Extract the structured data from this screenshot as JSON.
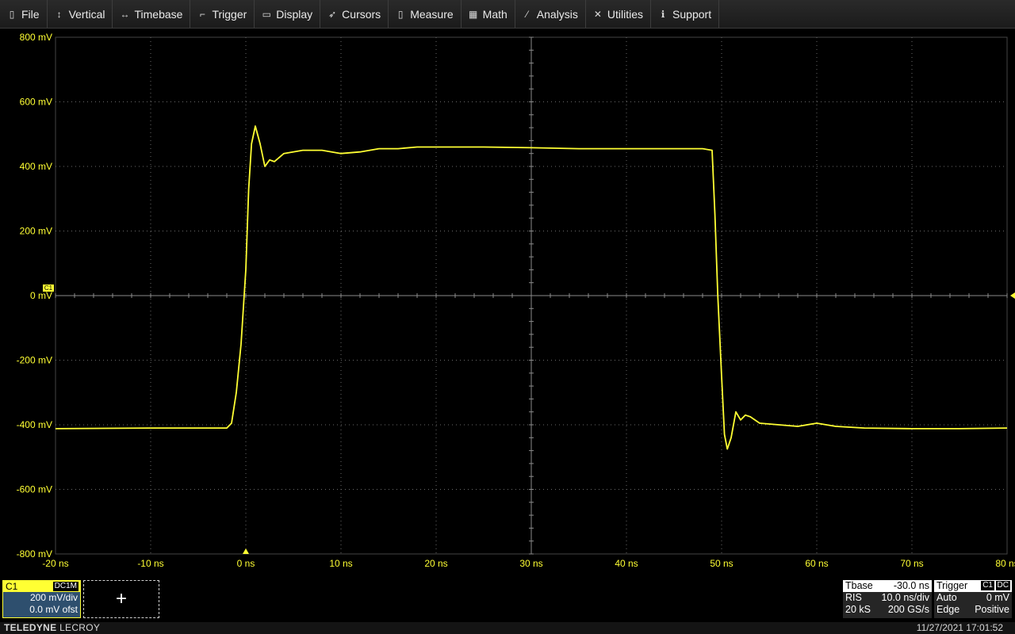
{
  "menu": [
    {
      "label": "File",
      "icon": "file-icon",
      "glyph": "▯"
    },
    {
      "label": "Vertical",
      "icon": "vertical-arrows-icon",
      "glyph": "↕"
    },
    {
      "label": "Timebase",
      "icon": "horizontal-arrows-icon",
      "glyph": "↔"
    },
    {
      "label": "Trigger",
      "icon": "trigger-flag-icon",
      "glyph": "⌐"
    },
    {
      "label": "Display",
      "icon": "display-icon",
      "glyph": "▭"
    },
    {
      "label": "Cursors",
      "icon": "cursor-icon",
      "glyph": "➶"
    },
    {
      "label": "Measure",
      "icon": "measure-icon",
      "glyph": "▯"
    },
    {
      "label": "Math",
      "icon": "calculator-icon",
      "glyph": "▦"
    },
    {
      "label": "Analysis",
      "icon": "analysis-chart-icon",
      "glyph": "⁄"
    },
    {
      "label": "Utilities",
      "icon": "tools-icon",
      "glyph": "✕"
    },
    {
      "label": "Support",
      "icon": "info-icon",
      "glyph": "ℹ"
    }
  ],
  "graph": {
    "y_ticks": [
      "800 mV",
      "600 mV",
      "400 mV",
      "200 mV",
      "0 mV",
      "-200 mV",
      "-400 mV",
      "-600 mV",
      "-800 mV"
    ],
    "x_ticks": [
      "-20 ns",
      "-10 ns",
      "0 ns",
      "10 ns",
      "20 ns",
      "30 ns",
      "40 ns",
      "50 ns",
      "60 ns",
      "70 ns",
      "80 ns"
    ],
    "channel_marker": "C1",
    "trace_color": "#ffff33",
    "grid_color": "#6a6a6a"
  },
  "chart_data": {
    "type": "line",
    "xlabel": "",
    "ylabel": "",
    "xlim": [
      -20,
      80
    ],
    "ylim": [
      -800,
      800
    ],
    "x_unit": "ns",
    "y_unit": "mV",
    "series": [
      {
        "x": [
          -20,
          -10,
          -2,
          -1.5,
          -1,
          -0.5,
          0,
          0.3,
          0.6,
          1.0,
          1.5,
          2.0,
          2.5,
          3,
          4,
          6,
          8,
          10,
          12,
          14,
          16,
          18,
          20,
          25,
          30,
          35,
          40,
          45,
          48,
          49,
          49.3,
          49.6,
          50,
          50.3,
          50.6,
          51,
          51.5,
          52,
          52.5,
          53,
          54,
          56,
          58,
          60,
          62,
          65,
          70,
          75,
          80
        ],
        "y": [
          -412,
          -410,
          -410,
          -395,
          -300,
          -150,
          80,
          330,
          470,
          525,
          470,
          400,
          420,
          415,
          440,
          450,
          450,
          440,
          445,
          455,
          455,
          460,
          460,
          460,
          458,
          455,
          455,
          455,
          455,
          450,
          250,
          0,
          -250,
          -430,
          -475,
          -440,
          -360,
          -385,
          -370,
          -375,
          -395,
          -400,
          -405,
          -395,
          -405,
          -410,
          -412,
          -412,
          -410
        ]
      }
    ]
  },
  "c1": {
    "name": "C1",
    "coupling": "DC1M",
    "vdiv": "200 mV/div",
    "offset": "0.0 mV ofst"
  },
  "add_box": {
    "symbol": "+"
  },
  "timebase": {
    "title": "Tbase",
    "delay": "-30.0 ns",
    "mode": "RIS",
    "tdiv": "10.0 ns/div",
    "samples": "20 kS",
    "rate": "200 GS/s"
  },
  "trigger": {
    "title": "Trigger",
    "source": "C1",
    "coupling": "DC",
    "mode": "Auto",
    "level": "0 mV",
    "type": "Edge",
    "slope": "Positive"
  },
  "status": {
    "brand_bold": "TELEDYNE",
    "brand_light": "LECROY",
    "datetime": "11/27/2021 17:01:52"
  }
}
